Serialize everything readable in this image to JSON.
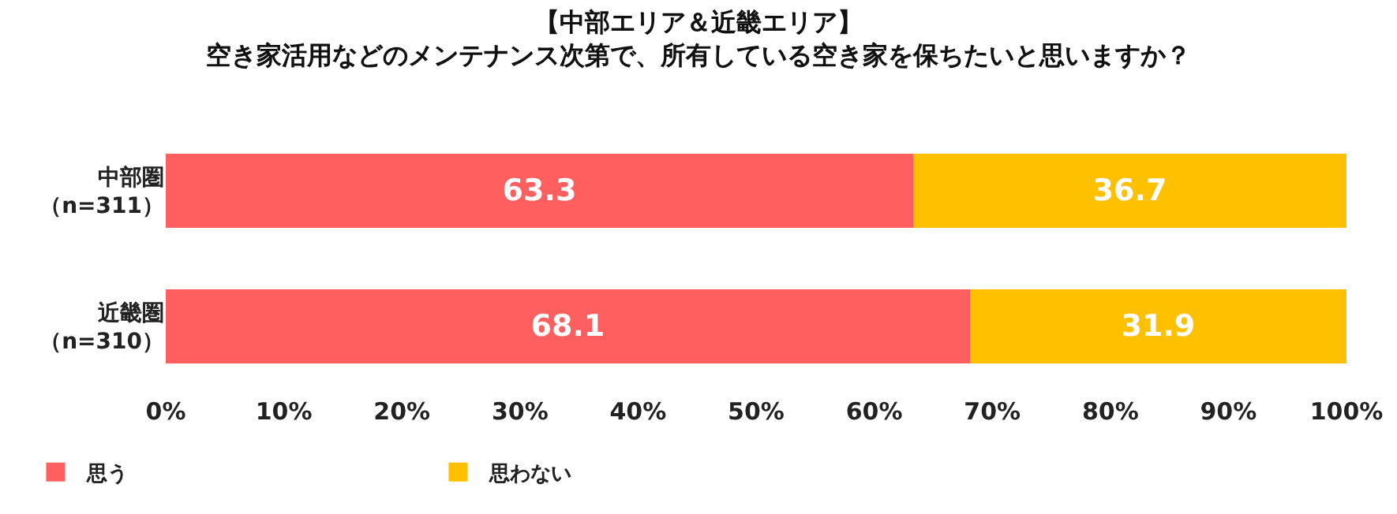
{
  "chart_data": {
    "type": "bar",
    "orientation": "horizontal",
    "stacked": true,
    "title": "【中部エリア＆近畿エリア】",
    "subtitle": "空き家活用などのメンテナンス次第で、所有している空き家を保ちたいと思いますか？",
    "categories": [
      "中部圏（n=311）",
      "近畿圏（n=310）"
    ],
    "series": [
      {
        "name": "思う",
        "color": "#ff5f5f",
        "values": [
          63.3,
          68.1
        ]
      },
      {
        "name": "思わない",
        "color": "#ffc000",
        "values": [
          36.7,
          31.9
        ]
      }
    ],
    "xlim": [
      0,
      100
    ],
    "xticks": [
      {
        "value": 0,
        "label": "0%"
      },
      {
        "value": 10,
        "label": "10%"
      },
      {
        "value": 20,
        "label": "20%"
      },
      {
        "value": 30,
        "label": "30%"
      },
      {
        "value": 40,
        "label": "40%"
      },
      {
        "value": 50,
        "label": "50%"
      },
      {
        "value": 60,
        "label": "60%"
      },
      {
        "value": 70,
        "label": "70%"
      },
      {
        "value": 80,
        "label": "80%"
      },
      {
        "value": 90,
        "label": "90%"
      },
      {
        "value": 100,
        "label": "100%"
      }
    ],
    "data_labels": true,
    "legend": "bottom left",
    "grid": false
  }
}
